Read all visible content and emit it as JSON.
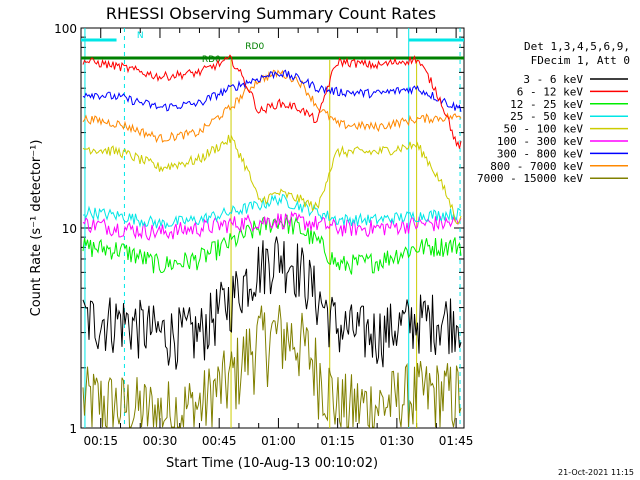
{
  "chart_data": {
    "type": "line",
    "title": "RHESSI Observing Summary Count Rates",
    "xlabel": "Start Time (10-Aug-13 00:10:02)",
    "ylabel": "Count Rate (s⁻¹ detector⁻¹)",
    "y_scale": "log",
    "ylim": [
      1,
      100
    ],
    "xlim": [
      "00:10",
      "01:47"
    ],
    "x_tick_labels": [
      "00:15",
      "00:30",
      "00:45",
      "01:00",
      "01:15",
      "01:30",
      "01:45"
    ],
    "y_tick_labels": [
      "1",
      "10",
      "100"
    ],
    "legend_header": [
      "Det 1,3,4,5,6,9,",
      "FDecim 1, Att 0"
    ],
    "legend_position": "right",
    "footer_date": "21-Oct-2021 11:15",
    "flags": [
      {
        "label": "N",
        "color": "#00e6e6"
      },
      {
        "label": "RD0",
        "color": "#008000"
      },
      {
        "label": "RD0",
        "color": "#008000"
      }
    ],
    "series": [
      {
        "name": "3 - 6 keV",
        "color": "#000000",
        "x": [
          "00:12",
          "00:20",
          "00:30",
          "00:40",
          "00:48",
          "00:55",
          "01:00",
          "01:05",
          "01:10",
          "01:15",
          "01:25",
          "01:35",
          "01:45"
        ],
        "y": [
          3.5,
          3.5,
          3.0,
          3.0,
          4.5,
          6.5,
          7.5,
          6.5,
          4.5,
          3.2,
          3.0,
          3.5,
          3.6
        ]
      },
      {
        "name": "6 - 12 keV",
        "color": "#ff0000",
        "x": [
          "00:12",
          "00:20",
          "00:30",
          "00:40",
          "00:48",
          "00:55",
          "01:00",
          "01:05",
          "01:10",
          "01:15",
          "01:25",
          "01:35",
          "01:45"
        ],
        "y": [
          68,
          64,
          57,
          60,
          70,
          38,
          42,
          40,
          34,
          68,
          65,
          70,
          26
        ]
      },
      {
        "name": "12 - 25 keV",
        "color": "#00ee00",
        "x": [
          "00:12",
          "00:20",
          "00:30",
          "00:40",
          "00:48",
          "00:55",
          "01:00",
          "01:05",
          "01:10",
          "01:15",
          "01:25",
          "01:35",
          "01:45"
        ],
        "y": [
          8.0,
          7.8,
          6.5,
          7.0,
          8.5,
          10.0,
          11.0,
          10.0,
          8.5,
          6.5,
          6.8,
          8.0,
          8.2
        ]
      },
      {
        "name": "25 - 50 keV",
        "color": "#00e6e6",
        "x": [
          "00:12",
          "00:20",
          "00:30",
          "00:40",
          "00:48",
          "00:55",
          "01:00",
          "01:05",
          "01:10",
          "01:15",
          "01:25",
          "01:35",
          "01:45"
        ],
        "y": [
          12.0,
          11.5,
          10.5,
          11.0,
          12.0,
          13.0,
          14.0,
          13.0,
          12.0,
          11.0,
          11.0,
          11.5,
          11.8
        ]
      },
      {
        "name": "50 - 100 keV",
        "color": "#cccc00",
        "x": [
          "00:12",
          "00:20",
          "00:30",
          "00:40",
          "00:48",
          "00:55",
          "01:00",
          "01:05",
          "01:10",
          "01:15",
          "01:25",
          "01:35",
          "01:45"
        ],
        "y": [
          25,
          24,
          20,
          22,
          28,
          13.5,
          15.0,
          14.0,
          12.5,
          24,
          24,
          26,
          11.0
        ]
      },
      {
        "name": "100 - 300 keV",
        "color": "#ff00ff",
        "x": [
          "00:12",
          "00:20",
          "00:30",
          "00:40",
          "00:48",
          "00:55",
          "01:00",
          "01:05",
          "01:10",
          "01:15",
          "01:25",
          "01:35",
          "01:45"
        ],
        "y": [
          10.5,
          10.0,
          9.5,
          10.0,
          10.5,
          10.8,
          11.0,
          10.8,
          10.5,
          10.0,
          10.0,
          10.5,
          10.6
        ]
      },
      {
        "name": "300 - 800 keV",
        "color": "#0000ff",
        "x": [
          "00:12",
          "00:20",
          "00:30",
          "00:40",
          "00:48",
          "00:55",
          "01:00",
          "01:05",
          "01:10",
          "01:15",
          "01:25",
          "01:35",
          "01:45"
        ],
        "y": [
          47,
          45,
          40,
          42,
          50,
          56,
          60,
          56,
          50,
          48,
          47,
          50,
          40
        ]
      },
      {
        "name": "800 - 7000 keV",
        "color": "#ff8800",
        "x": [
          "00:12",
          "00:20",
          "00:30",
          "00:40",
          "00:48",
          "00:55",
          "01:00",
          "01:05",
          "01:10",
          "01:15",
          "01:25",
          "01:35",
          "01:45"
        ],
        "y": [
          35,
          33,
          28,
          30,
          40,
          55,
          60,
          55,
          40,
          33,
          32,
          35,
          36
        ]
      },
      {
        "name": "7000 - 15000 keV",
        "color": "#808000",
        "x": [
          "00:12",
          "00:20",
          "00:30",
          "00:40",
          "00:48",
          "00:55",
          "01:00",
          "01:05",
          "01:10",
          "01:15",
          "01:25",
          "01:35",
          "01:45"
        ],
        "y": [
          1.4,
          1.3,
          1.2,
          1.3,
          1.8,
          2.8,
          3.0,
          2.8,
          2.0,
          1.3,
          1.3,
          1.5,
          1.5
        ]
      }
    ]
  }
}
